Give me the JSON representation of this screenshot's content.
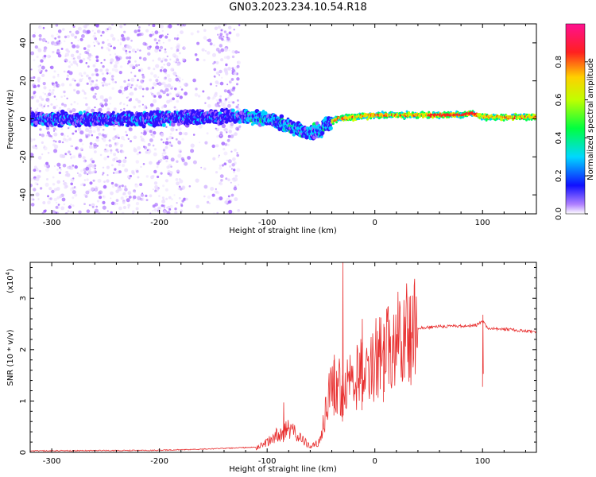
{
  "title": "GN03.2023.234.10.54.R18",
  "chart_data": [
    {
      "type": "heatmap",
      "xlabel": "Height of straight line (km)",
      "ylabel": "Frequency (Hz)",
      "xlim": [
        -320,
        150
      ],
      "ylim": [
        -50,
        50
      ],
      "x_ticks": [
        -300,
        -200,
        -100,
        0,
        100
      ],
      "y_ticks": [
        -40,
        -20,
        0,
        20,
        40
      ],
      "colorbar": {
        "label": "Normalized spectral amplitude",
        "range": [
          0,
          1
        ],
        "ticks": [
          "0.0",
          "0.2",
          "0.4",
          "0.6",
          "0.8"
        ],
        "tick_values": [
          0,
          0.2,
          0.4,
          0.6,
          0.8
        ]
      },
      "ridge": {
        "x": [
          -320,
          -280,
          -240,
          -200,
          -160,
          -120,
          -100,
          -85,
          -70,
          -60,
          -50,
          -45,
          -35,
          -20,
          0,
          20,
          40,
          60,
          80,
          90,
          100,
          120,
          150
        ],
        "y": [
          0,
          0,
          0,
          0,
          1,
          1,
          0,
          -3,
          -6,
          -7,
          -6,
          -3,
          0,
          1,
          2,
          2,
          2,
          2,
          2,
          3,
          1,
          1,
          1
        ]
      }
    },
    {
      "type": "line",
      "xlabel": "Height of straight line (km)",
      "ylabel": "SNR (10 * v/v)",
      "y_multiplier": "(x10",
      "y_multiplier_exp": "4",
      "y_multiplier_close": ")",
      "xlim": [
        -320,
        150
      ],
      "ylim": [
        0,
        3.7
      ],
      "x_ticks": [
        -300,
        -200,
        -100,
        0,
        100
      ],
      "y_ticks": [
        0,
        1,
        2,
        3
      ],
      "color": "#e83030",
      "envelope": {
        "x": [
          -320,
          -200,
          -150,
          -110,
          -100,
          -90,
          -80,
          -70,
          -60,
          -50,
          -40,
          -30,
          -20,
          -10,
          0,
          10,
          20,
          30,
          40,
          60,
          80,
          95,
          100,
          105,
          120,
          150
        ],
        "y": [
          0.01,
          0.02,
          0.05,
          0.08,
          0.2,
          0.35,
          0.45,
          0.3,
          0.1,
          0.25,
          1.5,
          1.2,
          1.4,
          1.7,
          1.8,
          2.0,
          2.15,
          2.3,
          2.42,
          2.45,
          2.46,
          2.48,
          2.55,
          2.42,
          2.4,
          2.35
        ]
      },
      "spikes": [
        {
          "x": -30,
          "y": 3.7
        },
        {
          "x": -12,
          "y": 2.6
        },
        {
          "x": 8,
          "y": 2.5
        },
        {
          "x": -38,
          "y": 1.9
        },
        {
          "x": -85,
          "y": 0.97
        },
        {
          "x": 100,
          "y": 2.68
        }
      ]
    }
  ]
}
